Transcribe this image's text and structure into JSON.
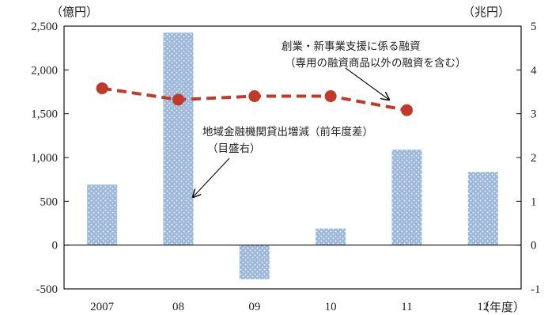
{
  "chart_data": {
    "type": "bar+line",
    "categories": [
      "2007",
      "08",
      "09",
      "10",
      "11",
      "12"
    ],
    "x_unit_label": "（年度）",
    "left_axis": {
      "unit_label": "（億円）",
      "min": -500,
      "max": 2500,
      "ticks": [
        2500,
        2000,
        1500,
        1000,
        500,
        0,
        -500
      ],
      "tick_labels": [
        "2,500",
        "2,000",
        "1,500",
        "1,000",
        "500",
        "0",
        "-500"
      ]
    },
    "right_axis": {
      "unit_label": "（兆円）",
      "min": -1,
      "max": 5,
      "ticks": [
        5,
        4,
        3,
        2,
        1,
        0,
        -1
      ],
      "tick_labels": [
        "5",
        "4",
        "3",
        "2",
        "1",
        "0",
        "-1"
      ]
    },
    "bar_series": {
      "name_lines": [
        "地域金融機関貸出増減（前年度差）",
        "（目盛右）"
      ],
      "axis": "right",
      "values": [
        1.38,
        4.85,
        -0.78,
        0.38,
        2.18,
        1.67
      ],
      "color": "#9db8dd"
    },
    "line_series": {
      "name_lines": [
        "創業・新事業支援に係る融資",
        "（専用の融資商品以外の融資を含む）"
      ],
      "axis": "left",
      "categories": [
        "2007",
        "08",
        "09",
        "10",
        "11"
      ],
      "values": [
        1790,
        1660,
        1700,
        1700,
        1540
      ],
      "color": "#c0392b"
    },
    "grid": false
  }
}
